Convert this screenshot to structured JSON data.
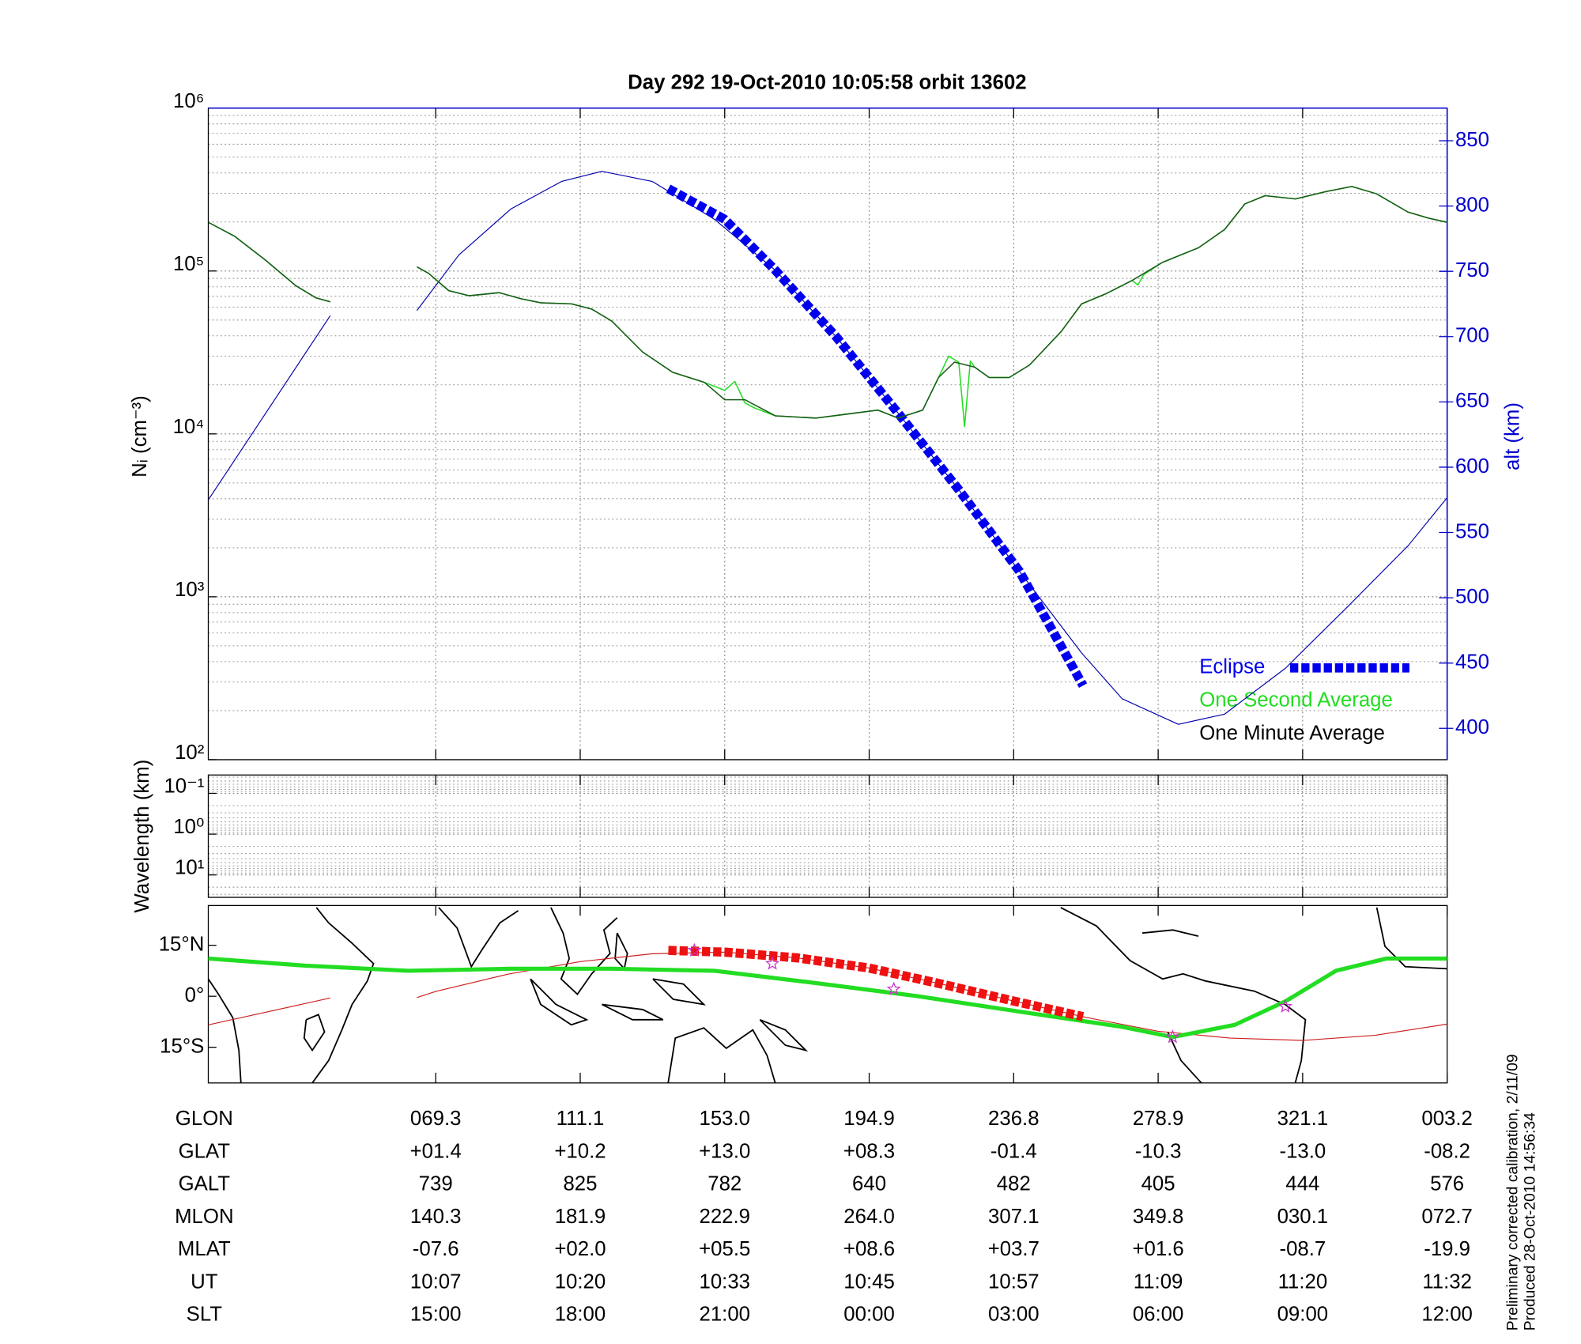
{
  "chart_data": [
    {
      "type": "line",
      "title": "Day 292  19-Oct-2010 10:05:58   orbit 13602",
      "ylabel": "Nᵢ (cm⁻³)",
      "y2label": "alt (km)",
      "y2color": "#0000cc",
      "log": true,
      "grid": true,
      "legend": "lower right",
      "xlim": [
        -1.574,
        7
      ],
      "xticks": [
        0,
        1,
        2,
        3,
        4,
        5,
        6,
        7
      ],
      "ylim": [
        100,
        1000000
      ],
      "yticks": [
        {
          "value": 100,
          "label": "10²"
        },
        {
          "value": 1000,
          "label": "10³"
        },
        {
          "value": 10000,
          "label": "10⁴"
        },
        {
          "value": 100000,
          "label": "10⁵"
        },
        {
          "value": 1000000,
          "label": "10⁶"
        }
      ],
      "y2lim": [
        376,
        875
      ],
      "y2ticks": [
        400,
        450,
        500,
        550,
        600,
        650,
        700,
        750,
        800,
        850
      ],
      "series": [
        {
          "color": "#0000aa",
          "axis": "y2",
          "x": [
            -1.574,
            -0.73,
            -0.4,
            -0.13,
            0.16,
            0.52,
            0.87,
            1.15,
            1.5,
            1.93,
            2.35,
            2.77,
            3.2,
            3.62,
            4.04,
            4.47,
            4.75,
            5.14,
            5.46,
            5.88,
            6.31,
            6.73,
            7
          ],
          "values": [
            575,
            716,
            null,
            720,
            762.5,
            797.7,
            818.8,
            826.6,
            818.8,
            789.8,
            750.8,
            700,
            641.4,
            582.8,
            520.3,
            457.8,
            422.7,
            403.1,
            410.9,
            446,
            493,
            539.8,
            576.6
          ]
        },
        {
          "name": "Eclipse",
          "color": "#0000ee",
          "axis": "y2",
          "marker": "square",
          "x": [
            1.61,
            2.0,
            2.35,
            2.77,
            3.2,
            3.62,
            4.04,
            4.48
          ],
          "values": [
            813.3,
            789.8,
            750.8,
            700,
            641.4,
            582.8,
            520.3,
            432.8
          ]
        },
        {
          "name": "One Second Average",
          "color": "#22dd22",
          "x": [
            -1.574,
            -1.39,
            -1.18,
            -0.97,
            -0.83,
            -0.73,
            -0.4,
            -0.13,
            -0.05,
            0.09,
            0.23,
            0.44,
            0.59,
            0.73,
            0.94,
            1.08,
            1.22,
            1.43,
            1.64,
            1.86,
            2.0,
            2.07,
            2.14,
            2.2,
            2.35,
            2.63,
            2.84,
            3.06,
            3.2,
            3.37,
            3.48,
            3.55,
            3.62,
            3.66,
            3.7,
            3.73,
            3.83,
            3.97,
            4.11,
            4.33,
            4.47,
            4.64,
            4.82,
            4.86,
            4.9,
            5.03,
            5.28,
            5.46,
            5.6,
            5.74,
            5.95,
            6.16,
            6.34,
            6.51,
            6.73,
            6.87,
            7
          ],
          "values": [
            199000,
            163000,
            117000,
            81400,
            68500,
            64700,
            null,
            106000,
            96800,
            75800,
            70500,
            73600,
            67500,
            63700,
            62800,
            58400,
            49200,
            31900,
            23900,
            20700,
            18500,
            21000,
            15500,
            14500,
            12900,
            12500,
            13200,
            14000,
            12500,
            14000,
            22200,
            30000,
            27600,
            11100,
            28000,
            25700,
            22200,
            22200,
            26500,
            42600,
            62800,
            72600,
            87500,
            82000,
            95000,
            113000,
            139000,
            180000,
            258000,
            290000,
            277000,
            307000,
            330000,
            298000,
            230000,
            211000,
            199000
          ]
        },
        {
          "name": "One Minute Average",
          "color": "#1a5c1a",
          "legend_color": "#000000",
          "x": [
            -1.574,
            -1.39,
            -1.18,
            -0.97,
            -0.83,
            -0.73,
            -0.4,
            -0.13,
            -0.05,
            0.09,
            0.23,
            0.44,
            0.59,
            0.73,
            0.94,
            1.08,
            1.22,
            1.43,
            1.64,
            1.86,
            2.0,
            2.14,
            2.35,
            2.63,
            2.84,
            3.06,
            3.2,
            3.37,
            3.48,
            3.59,
            3.73,
            3.83,
            3.97,
            4.11,
            4.33,
            4.47,
            4.64,
            4.82,
            5.03,
            5.28,
            5.46,
            5.6,
            5.74,
            5.95,
            6.16,
            6.34,
            6.51,
            6.73,
            6.87,
            7
          ],
          "values": [
            199000,
            163000,
            117000,
            81400,
            68500,
            64700,
            null,
            106000,
            96800,
            75800,
            70500,
            73600,
            67500,
            63700,
            62800,
            58400,
            49200,
            31900,
            23900,
            20700,
            16200,
            16200,
            12900,
            12500,
            13200,
            14000,
            12500,
            14000,
            22200,
            27600,
            25700,
            22200,
            22200,
            26500,
            42600,
            62800,
            72600,
            87500,
            113000,
            139000,
            180000,
            258000,
            290000,
            277000,
            307000,
            330000,
            298000,
            230000,
            211000,
            199000
          ]
        }
      ]
    },
    {
      "type": "line",
      "ylabel": "Wavelength (km)",
      "log": true,
      "inverted": true,
      "grid": true,
      "xlim": [
        -1.574,
        7
      ],
      "xticks": [
        0,
        1,
        2,
        3,
        4,
        5,
        6,
        7
      ],
      "ylim": [
        0.0355,
        35.5
      ],
      "yticks": [
        {
          "value": 0.1,
          "label": "10⁻¹"
        },
        {
          "value": 1,
          "label": "10⁰"
        },
        {
          "value": 10,
          "label": "10¹"
        }
      ],
      "series": []
    },
    {
      "type": "map",
      "xlim": [
        -1.574,
        7
      ],
      "xticks": [
        0,
        1,
        2,
        3,
        4,
        5,
        6,
        7
      ],
      "ylim": [
        -25.5,
        26.7
      ],
      "yticks": [
        {
          "value": 15,
          "label": "15°N"
        },
        {
          "value": 0,
          "label": "0°"
        },
        {
          "value": -15,
          "label": "15°S"
        }
      ],
      "series": [
        {
          "color": "#cc2222",
          "x": [
            -1.574,
            -0.73,
            -0.4,
            -0.13,
            0,
            0.5,
            1,
            1.5,
            2,
            2.5,
            3,
            3.5,
            4,
            4.5,
            5,
            5.5,
            6,
            6.5,
            7
          ],
          "values": [
            -8.4,
            -0.5,
            null,
            -0.4,
            1.4,
            6.5,
            10.2,
            12.5,
            13.0,
            11.3,
            8.3,
            3.6,
            -1.4,
            -6.2,
            -10.3,
            -12.3,
            -13.0,
            -11.5,
            -8.2
          ]
        },
        {
          "color": "#22dd22",
          "x": [
            -1.574,
            -0.9,
            -0.19,
            0.52,
            1.22,
            1.93,
            2.63,
            3.34,
            4.04,
            4.75,
            5.1,
            5.53,
            5.88,
            6.23,
            6.58,
            7
          ],
          "values": [
            11.1,
            9,
            7.5,
            8.1,
            8.1,
            7.5,
            3.9,
            0,
            -4.5,
            -9,
            -12,
            -8.4,
            -1.5,
            7.5,
            11.1,
            11.1
          ]
        },
        {
          "color": "#ee1111",
          "marker": "square",
          "x": [
            1.61,
            2.0,
            2.5,
            3.0,
            3.5,
            4.0,
            4.48
          ],
          "values": [
            13.5,
            13.0,
            11.3,
            8.3,
            3.6,
            -1.4,
            -6.0
          ]
        },
        {
          "color": "#cc33cc",
          "marker": "star",
          "x": [
            1.79,
            2.33,
            3.17,
            5.1,
            5.88
          ],
          "values": [
            13.5,
            9.6,
            2.1,
            -12,
            -3
          ]
        }
      ]
    }
  ],
  "table": {
    "rows": [
      {
        "label": "GLON",
        "values": [
          "069.3",
          "111.1",
          "153.0",
          "194.9",
          "236.8",
          "278.9",
          "321.1",
          "003.2"
        ]
      },
      {
        "label": "GLAT",
        "values": [
          "+01.4",
          "+10.2",
          "+13.0",
          "+08.3",
          "-01.4",
          "-10.3",
          "-13.0",
          "-08.2"
        ]
      },
      {
        "label": "GALT",
        "values": [
          "739",
          "825",
          "782",
          "640",
          "482",
          "405",
          "444",
          "576"
        ]
      },
      {
        "label": "MLON",
        "values": [
          "140.3",
          "181.9",
          "222.9",
          "264.0",
          "307.1",
          "349.8",
          "030.1",
          "072.7"
        ]
      },
      {
        "label": "MLAT",
        "values": [
          "-07.6",
          "+02.0",
          "+05.5",
          "+08.6",
          "+03.7",
          "+01.6",
          "-08.7",
          "-19.9"
        ]
      },
      {
        "label": "UT",
        "values": [
          "10:07",
          "10:20",
          "10:33",
          "10:45",
          "10:57",
          "11:09",
          "11:20",
          "11:32"
        ]
      },
      {
        "label": "SLT",
        "values": [
          "15:00",
          "18:00",
          "21:00",
          "00:00",
          "03:00",
          "06:00",
          "09:00",
          "12:00"
        ]
      }
    ]
  },
  "notes": [
    "Preliminary corrected calibration, 2/11/09",
    "Produced 28-Oct-2010 14:56:34"
  ]
}
